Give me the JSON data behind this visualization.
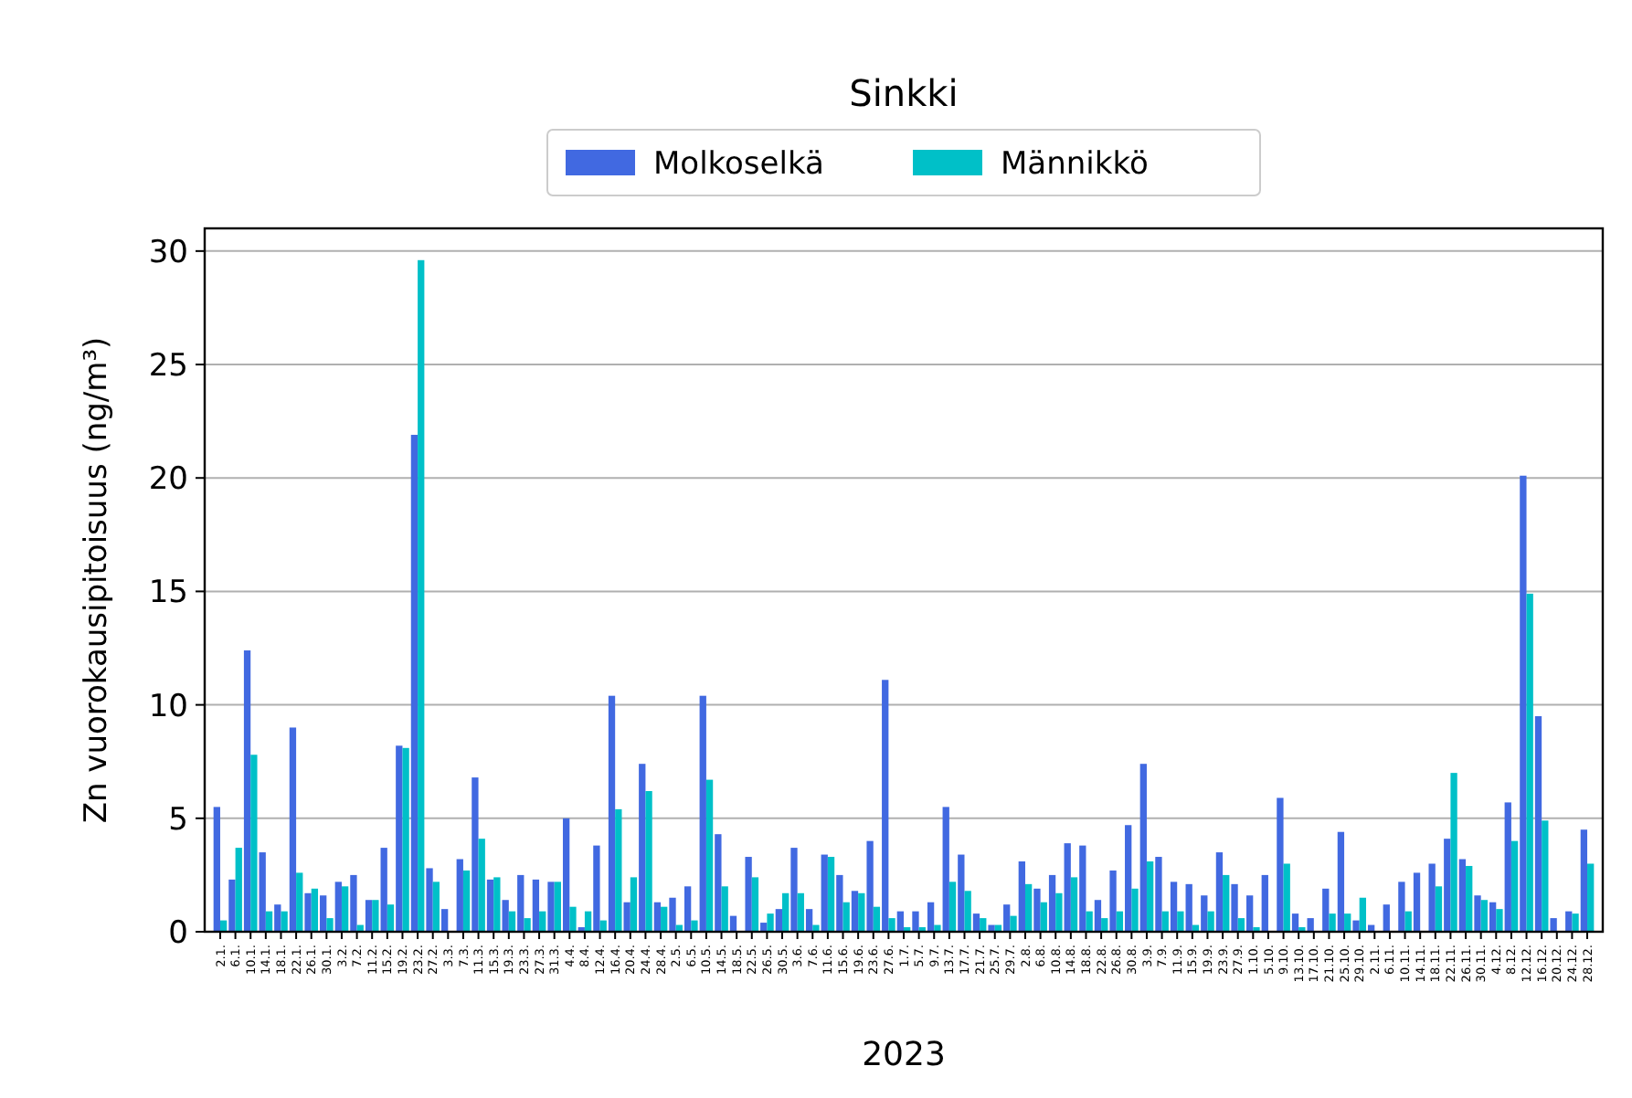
{
  "chart_data": {
    "type": "bar",
    "title": "Sinkki",
    "xlabel": "2023",
    "ylabel": "Zn vuorokausipitoisuus (ng/m³)",
    "categories": [
      "2.1.",
      "6.1.",
      "10.1.",
      "14.1.",
      "18.1.",
      "22.1.",
      "26.1.",
      "30.1.",
      "3.2.",
      "7.2.",
      "11.2.",
      "15.2.",
      "19.2.",
      "23.2.",
      "27.2.",
      "3.3.",
      "7.3.",
      "11.3.",
      "15.3.",
      "19.3.",
      "23.3.",
      "27.3.",
      "31.3.",
      "4.4.",
      "8.4.",
      "12.4.",
      "16.4.",
      "20.4.",
      "24.4.",
      "28.4.",
      "2.5.",
      "6.5.",
      "10.5.",
      "14.5.",
      "18.5.",
      "22.5.",
      "26.5.",
      "30.5.",
      "3.6.",
      "7.6.",
      "11.6.",
      "15.6.",
      "19.6.",
      "23.6.",
      "27.6.",
      "1.7.",
      "5.7.",
      "9.7.",
      "13.7.",
      "17.7.",
      "21.7.",
      "25.7.",
      "29.7.",
      "2.8.",
      "6.8.",
      "10.8.",
      "14.8.",
      "18.8.",
      "22.8.",
      "26.8.",
      "30.8.",
      "3.9.",
      "7.9.",
      "11.9.",
      "15.9.",
      "19.9.",
      "23.9.",
      "27.9.",
      "1.10.",
      "5.10.",
      "9.10.",
      "13.10.",
      "17.10.",
      "21.10.",
      "25.10.",
      "29.10.",
      "2.11.",
      "6.11.",
      "10.11.",
      "14.11.",
      "18.11.",
      "22.11.",
      "26.11.",
      "30.11.",
      "4.12.",
      "8.12.",
      "12.12.",
      "16.12.",
      "20.12.",
      "24.12.",
      "28.12."
    ],
    "series": [
      {
        "name": "Molkoselkä",
        "color": "#4169e1",
        "values": [
          5.5,
          2.3,
          12.4,
          3.5,
          1.2,
          9.0,
          1.7,
          1.6,
          2.2,
          2.5,
          1.4,
          3.7,
          8.2,
          21.9,
          2.8,
          1.0,
          3.2,
          6.8,
          2.3,
          1.4,
          2.5,
          2.3,
          2.2,
          5.0,
          0.2,
          3.8,
          10.4,
          1.3,
          7.4,
          1.3,
          1.5,
          2.0,
          10.4,
          4.3,
          0.7,
          3.3,
          0.4,
          1.0,
          3.7,
          1.0,
          3.4,
          2.5,
          1.8,
          4.0,
          11.1,
          0.9,
          0.9,
          1.3,
          5.5,
          3.4,
          0.8,
          0.3,
          1.2,
          3.1,
          1.9,
          2.5,
          3.9,
          3.8,
          1.4,
          2.7,
          4.7,
          7.4,
          3.3,
          2.2,
          2.1,
          1.6,
          3.5,
          2.1,
          1.6,
          2.5,
          5.9,
          0.8,
          0.6,
          1.9,
          4.4,
          0.5,
          0.3,
          1.2,
          2.2,
          2.6,
          3.0,
          4.1,
          3.2,
          1.6,
          1.3,
          5.7,
          20.1,
          9.5,
          0.6,
          0.9,
          4.5
        ]
      },
      {
        "name": "Männikkö",
        "color": "#00c0c8",
        "values": [
          0.5,
          3.7,
          7.8,
          0.9,
          0.9,
          2.6,
          1.9,
          0.6,
          2.0,
          0.3,
          1.4,
          1.2,
          8.1,
          29.6,
          2.2,
          null,
          2.7,
          4.1,
          2.4,
          0.9,
          0.6,
          0.9,
          2.2,
          1.1,
          0.9,
          0.5,
          5.4,
          2.4,
          6.2,
          1.1,
          0.3,
          0.5,
          6.7,
          2.0,
          null,
          2.4,
          0.8,
          1.7,
          1.7,
          0.3,
          3.3,
          1.3,
          1.7,
          1.1,
          0.6,
          0.2,
          0.2,
          0.3,
          2.2,
          1.8,
          0.6,
          0.3,
          0.7,
          2.1,
          1.3,
          1.7,
          2.4,
          0.9,
          0.6,
          0.9,
          1.9,
          3.1,
          0.9,
          0.9,
          0.3,
          0.9,
          2.5,
          0.6,
          0.2,
          null,
          3.0,
          0.2,
          null,
          0.8,
          0.8,
          1.5,
          null,
          null,
          0.9,
          null,
          2.0,
          7.0,
          2.9,
          1.4,
          1.0,
          4.0,
          14.9,
          4.9,
          null,
          0.8,
          3.0
        ]
      }
    ],
    "ylim": [
      0,
      31
    ],
    "yticks": [
      0,
      5,
      10,
      15,
      20,
      25,
      30
    ],
    "grid": "y",
    "legend": "top"
  }
}
